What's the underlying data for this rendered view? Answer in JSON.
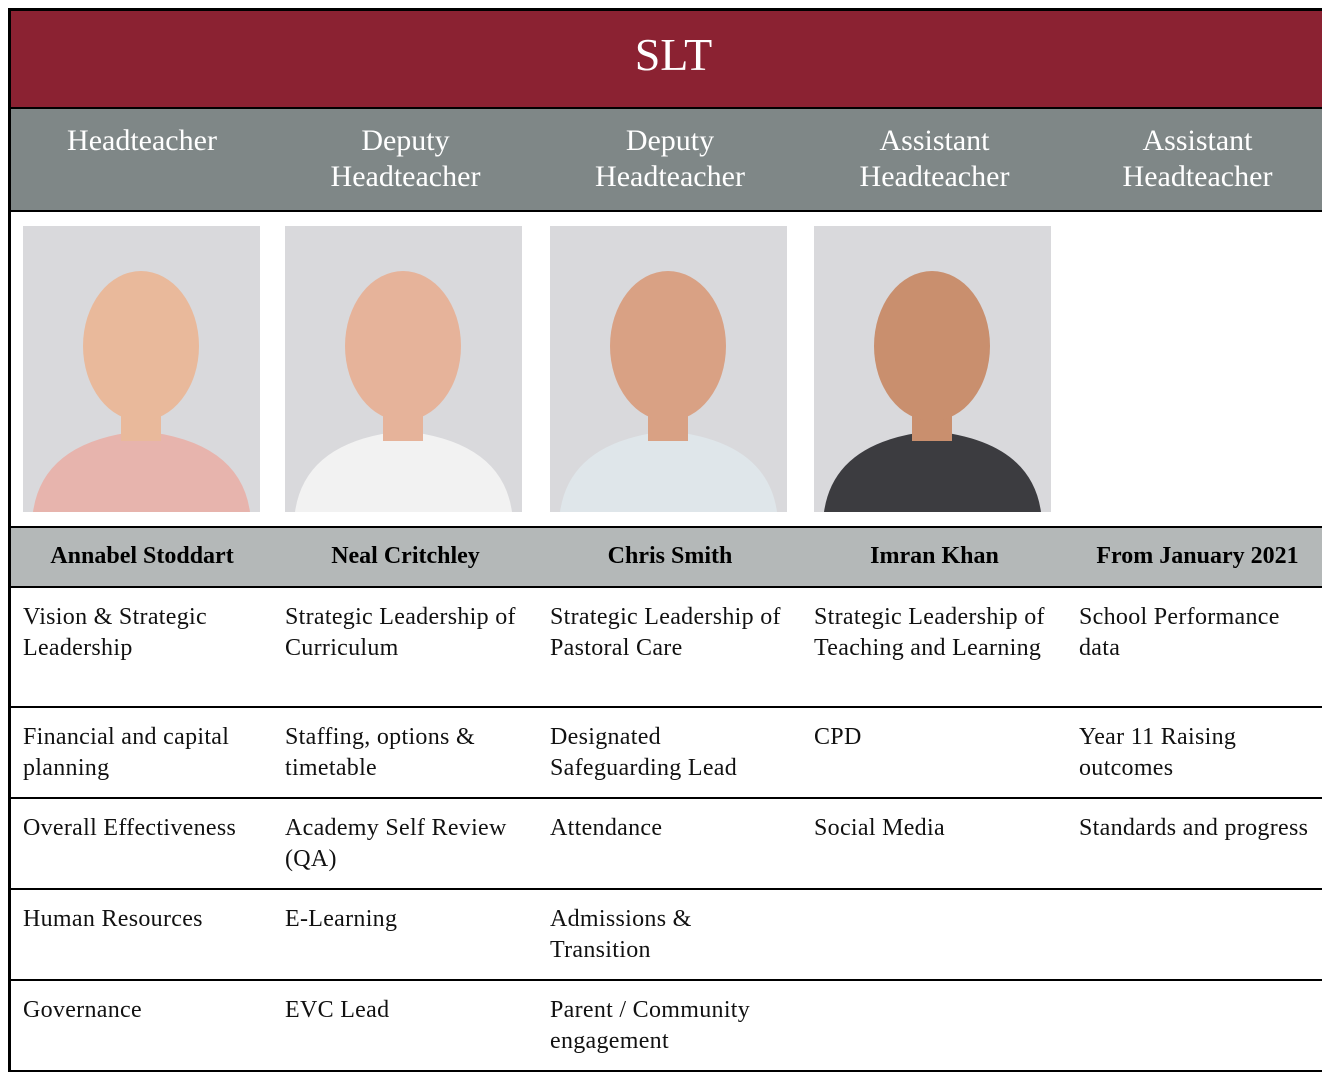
{
  "title": "SLT",
  "headers": [
    "Headteacher",
    "Deputy Headteacher",
    "Deputy Headteacher",
    "Assistant Headteacher",
    "Assistant Headteacher"
  ],
  "names": [
    "Annabel Stoddart",
    "Neal Critchley",
    "Chris Smith",
    "Imran Khan",
    "From January 2021"
  ],
  "rows": [
    [
      "Vision & Strategic Leadership",
      "Strategic Leadership of Curriculum",
      "Strategic Leadership of Pastoral Care",
      "Strategic Leadership of Teaching and Learning",
      "School Performance data"
    ],
    [
      "Financial and capital planning",
      "Staffing, options & timetable",
      "Designated Safeguarding Lead",
      "CPD",
      "Year 11 Raising outcomes"
    ],
    [
      "Overall Effectiveness",
      "Academy Self Review (QA)",
      "Attendance",
      "Social Media",
      "Standards and progress"
    ],
    [
      "Human Resources",
      "E-Learning",
      "Admissions & Transition",
      null,
      null
    ],
    [
      "Governance",
      "EVC Lead",
      "Parent / Community engagement",
      null,
      null
    ]
  ]
}
